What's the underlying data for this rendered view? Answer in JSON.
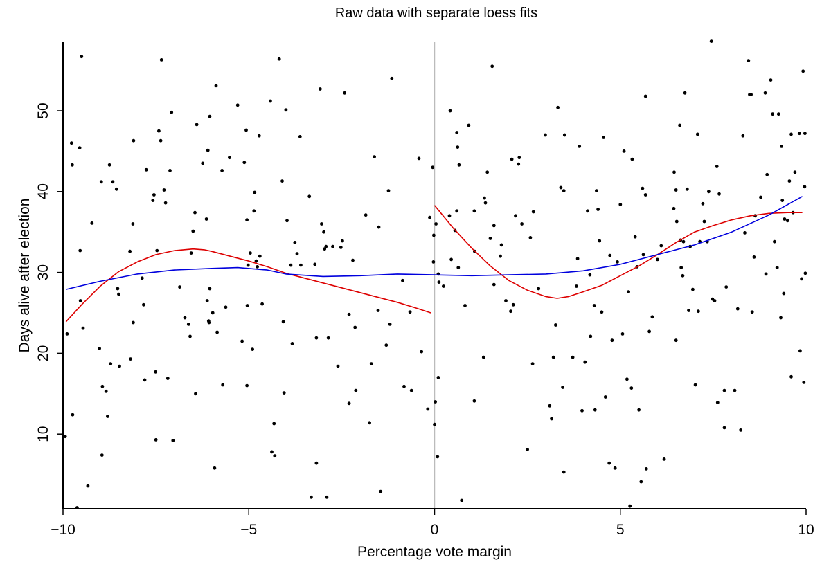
{
  "chart_data": {
    "type": "scatter",
    "title": "Raw data with separate loess fits",
    "xlabel": "Percentage vote margin",
    "ylabel": "Days alive after election",
    "xlim": [
      -10,
      10
    ],
    "ylim": [
      0.8,
      58.6
    ],
    "xticks": [
      -10,
      -5,
      0,
      5,
      10
    ],
    "xtick_labels": [
      "−10",
      "−5",
      "0",
      "5",
      "10"
    ],
    "yticks": [
      10,
      20,
      30,
      40,
      50
    ],
    "ytick_labels": [
      "10",
      "20",
      "30",
      "40",
      "50"
    ],
    "grid": false,
    "legend": null,
    "cutoff_line": {
      "x": 0,
      "color": "#bbbbbb"
    },
    "colors": {
      "points": "#000000",
      "loess_separate": "#dd0000",
      "loess_pooled": "#0000dd",
      "axis": "#000000"
    },
    "points": [
      [
        -9.94,
        9.7
      ],
      [
        -9.89,
        22.4
      ],
      [
        -9.77,
        46.0
      ],
      [
        -9.75,
        43.3
      ],
      [
        -9.74,
        12.4
      ],
      [
        -9.62,
        0.9
      ],
      [
        -9.55,
        45.4
      ],
      [
        -9.54,
        32.7
      ],
      [
        -9.53,
        26.5
      ],
      [
        -9.5,
        56.7
      ],
      [
        -9.46,
        23.1
      ],
      [
        -9.33,
        3.6
      ],
      [
        -9.22,
        36.1
      ],
      [
        -9.02,
        20.6
      ],
      [
        -8.97,
        41.2
      ],
      [
        -8.95,
        7.4
      ],
      [
        -8.94,
        15.9
      ],
      [
        -8.84,
        15.3
      ],
      [
        -8.8,
        12.2
      ],
      [
        -8.75,
        43.3
      ],
      [
        -8.72,
        18.7
      ],
      [
        -8.66,
        41.2
      ],
      [
        -8.56,
        40.3
      ],
      [
        -8.53,
        28.0
      ],
      [
        -8.5,
        27.3
      ],
      [
        -8.48,
        18.4
      ],
      [
        -8.2,
        32.6
      ],
      [
        -8.18,
        19.3
      ],
      [
        -8.12,
        36.0
      ],
      [
        -8.11,
        23.8
      ],
      [
        -8.1,
        46.3
      ],
      [
        -7.87,
        29.3
      ],
      [
        -7.83,
        26.0
      ],
      [
        -7.8,
        16.7
      ],
      [
        -7.76,
        42.7
      ],
      [
        -7.58,
        38.9
      ],
      [
        -7.55,
        39.6
      ],
      [
        -7.51,
        17.7
      ],
      [
        -7.5,
        9.3
      ],
      [
        -7.47,
        32.7
      ],
      [
        -7.42,
        47.5
      ],
      [
        -7.37,
        46.3
      ],
      [
        -7.35,
        56.3
      ],
      [
        -7.28,
        40.2
      ],
      [
        -7.24,
        38.6
      ],
      [
        -7.18,
        16.9
      ],
      [
        -7.12,
        42.6
      ],
      [
        -7.08,
        49.8
      ],
      [
        -7.04,
        9.2
      ],
      [
        -6.86,
        28.2
      ],
      [
        -6.72,
        24.4
      ],
      [
        -6.62,
        23.6
      ],
      [
        -6.58,
        22.1
      ],
      [
        -6.55,
        32.4
      ],
      [
        -6.5,
        35.1
      ],
      [
        -6.45,
        37.4
      ],
      [
        -6.43,
        15.0
      ],
      [
        -6.4,
        48.3
      ],
      [
        -6.24,
        43.5
      ],
      [
        -6.14,
        36.6
      ],
      [
        -6.12,
        26.5
      ],
      [
        -6.1,
        45.1
      ],
      [
        -6.08,
        24.0
      ],
      [
        -6.07,
        23.8
      ],
      [
        -6.05,
        49.3
      ],
      [
        -6.05,
        28.0
      ],
      [
        -5.97,
        25.0
      ],
      [
        -5.92,
        5.8
      ],
      [
        -5.88,
        53.1
      ],
      [
        -5.85,
        22.6
      ],
      [
        -5.72,
        42.6
      ],
      [
        -5.7,
        16.1
      ],
      [
        -5.62,
        25.7
      ],
      [
        -5.52,
        44.2
      ],
      [
        -5.3,
        50.7
      ],
      [
        -5.18,
        21.5
      ],
      [
        -5.12,
        43.6
      ],
      [
        -5.07,
        47.6
      ],
      [
        -5.05,
        36.5
      ],
      [
        -5.05,
        16.0
      ],
      [
        -5.04,
        25.9
      ],
      [
        -5.02,
        30.9
      ],
      [
        -4.96,
        32.4
      ],
      [
        -4.9,
        20.5
      ],
      [
        -4.86,
        37.6
      ],
      [
        -4.84,
        39.9
      ],
      [
        -4.8,
        31.4
      ],
      [
        -4.77,
        30.7
      ],
      [
        -4.72,
        46.9
      ],
      [
        -4.7,
        32.0
      ],
      [
        -4.64,
        26.1
      ],
      [
        -4.42,
        51.2
      ],
      [
        -4.38,
        7.8
      ],
      [
        -4.32,
        11.3
      ],
      [
        -4.3,
        7.3
      ],
      [
        -4.18,
        56.4
      ],
      [
        -4.1,
        41.3
      ],
      [
        -4.07,
        23.9
      ],
      [
        -4.05,
        15.1
      ],
      [
        -4.0,
        50.1
      ],
      [
        -3.97,
        36.4
      ],
      [
        -3.87,
        30.9
      ],
      [
        -3.83,
        21.2
      ],
      [
        -3.76,
        33.7
      ],
      [
        -3.7,
        32.3
      ],
      [
        -3.62,
        46.8
      ],
      [
        -3.6,
        30.9
      ],
      [
        -3.37,
        39.4
      ],
      [
        -3.32,
        2.2
      ],
      [
        -3.22,
        31.0
      ],
      [
        -3.18,
        21.9
      ],
      [
        -3.18,
        6.4
      ],
      [
        -3.08,
        52.7
      ],
      [
        -3.04,
        36.0
      ],
      [
        -2.98,
        35.0
      ],
      [
        -2.96,
        32.9
      ],
      [
        -2.92,
        33.2
      ],
      [
        -2.9,
        2.2
      ],
      [
        -2.86,
        21.9
      ],
      [
        -2.74,
        33.2
      ],
      [
        -2.6,
        18.4
      ],
      [
        -2.52,
        33.1
      ],
      [
        -2.48,
        33.9
      ],
      [
        -2.42,
        52.2
      ],
      [
        -2.3,
        24.8
      ],
      [
        -2.3,
        13.8
      ],
      [
        -2.2,
        31.5
      ],
      [
        -2.14,
        23.2
      ],
      [
        -2.12,
        15.4
      ],
      [
        -1.85,
        37.1
      ],
      [
        -1.75,
        11.4
      ],
      [
        -1.7,
        18.7
      ],
      [
        -1.62,
        44.3
      ],
      [
        -1.52,
        25.3
      ],
      [
        -1.5,
        35.6
      ],
      [
        -1.45,
        2.9
      ],
      [
        -1.3,
        21.0
      ],
      [
        -1.24,
        40.1
      ],
      [
        -1.2,
        23.6
      ],
      [
        -1.15,
        54.0
      ],
      [
        -0.86,
        29.0
      ],
      [
        -0.82,
        15.9
      ],
      [
        -0.66,
        25.1
      ],
      [
        -0.62,
        15.4
      ],
      [
        -0.42,
        44.1
      ],
      [
        -0.35,
        20.2
      ],
      [
        -0.18,
        13.1
      ],
      [
        -0.05,
        43.0
      ],
      [
        0.12,
        28.8
      ],
      [
        -0.13,
        36.8
      ],
      [
        -0.03,
        31.3
      ],
      [
        -0.02,
        34.6
      ],
      [
        0.0,
        11.2
      ],
      [
        0.02,
        14.0
      ],
      [
        0.04,
        36.0
      ],
      [
        0.08,
        7.2
      ],
      [
        0.1,
        17.0
      ],
      [
        0.1,
        29.8
      ],
      [
        0.24,
        28.3
      ],
      [
        0.4,
        37.0
      ],
      [
        0.42,
        50.0
      ],
      [
        0.45,
        31.6
      ],
      [
        0.55,
        35.2
      ],
      [
        0.6,
        37.6
      ],
      [
        0.6,
        47.3
      ],
      [
        0.62,
        45.5
      ],
      [
        0.64,
        30.6
      ],
      [
        0.66,
        43.3
      ],
      [
        0.73,
        1.8
      ],
      [
        0.82,
        25.9
      ],
      [
        0.92,
        48.2
      ],
      [
        1.07,
        14.1
      ],
      [
        1.07,
        37.6
      ],
      [
        1.08,
        32.6
      ],
      [
        1.32,
        19.5
      ],
      [
        1.34,
        39.2
      ],
      [
        1.37,
        38.6
      ],
      [
        1.42,
        42.4
      ],
      [
        1.5,
        34.2
      ],
      [
        1.55,
        55.5
      ],
      [
        1.6,
        35.8
      ],
      [
        1.6,
        28.5
      ],
      [
        1.77,
        32.0
      ],
      [
        1.8,
        33.4
      ],
      [
        1.92,
        26.5
      ],
      [
        2.05,
        25.2
      ],
      [
        2.08,
        44.0
      ],
      [
        2.12,
        26.0
      ],
      [
        2.18,
        37.0
      ],
      [
        2.26,
        43.4
      ],
      [
        2.28,
        44.2
      ],
      [
        2.35,
        36.0
      ],
      [
        2.5,
        8.1
      ],
      [
        2.58,
        34.3
      ],
      [
        2.64,
        18.7
      ],
      [
        2.66,
        37.5
      ],
      [
        2.8,
        28.0
      ],
      [
        2.98,
        47.0
      ],
      [
        3.1,
        13.5
      ],
      [
        3.15,
        11.9
      ],
      [
        3.2,
        19.5
      ],
      [
        3.26,
        23.5
      ],
      [
        3.32,
        50.4
      ],
      [
        3.4,
        40.5
      ],
      [
        3.45,
        15.8
      ],
      [
        3.48,
        40.1
      ],
      [
        3.48,
        5.3
      ],
      [
        3.72,
        19.5
      ],
      [
        3.82,
        28.3
      ],
      [
        3.85,
        31.7
      ],
      [
        3.9,
        45.6
      ],
      [
        3.97,
        12.9
      ],
      [
        4.05,
        18.9
      ],
      [
        4.12,
        37.6
      ],
      [
        4.18,
        29.7
      ],
      [
        4.2,
        22.1
      ],
      [
        4.3,
        25.9
      ],
      [
        4.32,
        13.0
      ],
      [
        4.36,
        40.1
      ],
      [
        4.4,
        37.8
      ],
      [
        4.44,
        33.9
      ],
      [
        4.5,
        25.1
      ],
      [
        4.55,
        46.7
      ],
      [
        4.6,
        14.6
      ],
      [
        4.7,
        6.4
      ],
      [
        4.72,
        32.1
      ],
      [
        4.78,
        21.6
      ],
      [
        4.86,
        5.8
      ],
      [
        4.92,
        31.3
      ],
      [
        5.0,
        38.4
      ],
      [
        5.06,
        22.4
      ],
      [
        5.1,
        45.0
      ],
      [
        5.18,
        16.8
      ],
      [
        5.22,
        27.6
      ],
      [
        5.26,
        1.1
      ],
      [
        5.3,
        15.7
      ],
      [
        5.32,
        44.0
      ],
      [
        5.4,
        34.4
      ],
      [
        5.45,
        30.7
      ],
      [
        5.5,
        13.0
      ],
      [
        5.56,
        4.1
      ],
      [
        5.6,
        40.4
      ],
      [
        5.62,
        32.2
      ],
      [
        5.68,
        51.8
      ],
      [
        5.68,
        39.6
      ],
      [
        5.7,
        5.7
      ],
      [
        5.78,
        22.7
      ],
      [
        5.86,
        24.5
      ],
      [
        6.0,
        31.6
      ],
      [
        6.1,
        33.3
      ],
      [
        6.18,
        6.9
      ],
      [
        6.44,
        37.9
      ],
      [
        6.45,
        42.4
      ],
      [
        6.5,
        40.2
      ],
      [
        6.5,
        21.6
      ],
      [
        6.52,
        36.3
      ],
      [
        6.6,
        48.2
      ],
      [
        6.62,
        34.0
      ],
      [
        6.64,
        30.6
      ],
      [
        6.68,
        29.6
      ],
      [
        6.7,
        33.8
      ],
      [
        6.74,
        52.2
      ],
      [
        6.8,
        40.3
      ],
      [
        6.84,
        25.3
      ],
      [
        6.88,
        33.2
      ],
      [
        6.95,
        27.9
      ],
      [
        7.02,
        16.1
      ],
      [
        7.08,
        47.1
      ],
      [
        7.1,
        25.2
      ],
      [
        7.14,
        33.8
      ],
      [
        7.22,
        38.5
      ],
      [
        7.26,
        36.3
      ],
      [
        7.34,
        33.8
      ],
      [
        7.38,
        40.0
      ],
      [
        7.48,
        26.7
      ],
      [
        7.54,
        26.5
      ],
      [
        7.6,
        43.1
      ],
      [
        7.62,
        13.9
      ],
      [
        7.66,
        39.7
      ],
      [
        7.8,
        15.4
      ],
      [
        7.8,
        10.8
      ],
      [
        7.85,
        28.2
      ],
      [
        8.08,
        15.4
      ],
      [
        8.16,
        25.5
      ],
      [
        8.24,
        10.5
      ],
      [
        8.3,
        46.9
      ],
      [
        8.35,
        34.9
      ],
      [
        8.45,
        56.2
      ],
      [
        8.48,
        52.0
      ],
      [
        8.52,
        52.0
      ],
      [
        8.55,
        25.1
      ],
      [
        8.6,
        31.9
      ],
      [
        8.63,
        37.0
      ],
      [
        8.78,
        39.3
      ],
      [
        8.9,
        52.2
      ],
      [
        8.92,
        29.8
      ],
      [
        8.95,
        42.1
      ],
      [
        9.05,
        53.8
      ],
      [
        9.1,
        49.6
      ],
      [
        9.15,
        33.8
      ],
      [
        9.22,
        30.6
      ],
      [
        9.26,
        49.6
      ],
      [
        9.32,
        24.4
      ],
      [
        9.34,
        45.6
      ],
      [
        9.36,
        38.9
      ],
      [
        9.4,
        27.4
      ],
      [
        9.42,
        36.6
      ],
      [
        9.5,
        36.4
      ],
      [
        9.55,
        41.3
      ],
      [
        9.6,
        47.1
      ],
      [
        9.6,
        17.1
      ],
      [
        9.65,
        37.4
      ],
      [
        9.7,
        42.4
      ],
      [
        9.82,
        47.2
      ],
      [
        9.84,
        20.3
      ],
      [
        9.88,
        29.2
      ],
      [
        9.92,
        54.9
      ],
      [
        9.94,
        16.4
      ],
      [
        9.96,
        40.6
      ],
      [
        9.98,
        29.9
      ],
      [
        9.97,
        47.2
      ],
      [
        7.45,
        58.6
      ],
      [
        3.5,
        47.0
      ]
    ],
    "series": [
      {
        "name": "loess fit, left of cutoff",
        "color": "#dd0000",
        "x": [
          -9.92,
          -9.5,
          -9.0,
          -8.5,
          -8.0,
          -7.5,
          -7.0,
          -6.5,
          -6.2,
          -6.0,
          -5.5,
          -5.0,
          -4.5,
          -4.0,
          -3.5,
          -3.0,
          -2.5,
          -2.0,
          -1.5,
          -1.0,
          -0.5,
          -0.1
        ],
        "y": [
          23.9,
          26.0,
          28.3,
          30.1,
          31.3,
          32.2,
          32.7,
          32.9,
          32.8,
          32.6,
          32.0,
          31.4,
          30.7,
          29.9,
          29.3,
          28.7,
          28.1,
          27.5,
          26.9,
          26.3,
          25.6,
          25.0
        ]
      },
      {
        "name": "loess fit, right of cutoff",
        "color": "#dd0000",
        "x": [
          0.0,
          0.5,
          1.0,
          1.5,
          2.0,
          2.5,
          3.0,
          3.3,
          3.6,
          4.0,
          4.5,
          5.0,
          5.5,
          6.0,
          6.5,
          7.0,
          7.5,
          8.0,
          8.5,
          9.0,
          9.5,
          9.9
        ],
        "y": [
          38.3,
          35.5,
          33.0,
          30.8,
          29.0,
          27.8,
          27.0,
          26.8,
          27.0,
          27.6,
          28.4,
          29.6,
          30.8,
          32.2,
          33.7,
          35.0,
          35.8,
          36.5,
          37.0,
          37.3,
          37.4,
          37.4
        ]
      },
      {
        "name": "pooled loess fit",
        "color": "#0000dd",
        "x": [
          -9.92,
          -9.0,
          -8.0,
          -7.0,
          -6.0,
          -5.3,
          -4.5,
          -4.0,
          -3.0,
          -2.0,
          -1.0,
          0.0,
          1.0,
          2.0,
          3.0,
          4.0,
          5.0,
          6.0,
          7.0,
          8.0,
          9.0,
          9.9
        ],
        "y": [
          27.9,
          28.9,
          29.8,
          30.3,
          30.5,
          30.6,
          30.3,
          29.8,
          29.5,
          29.6,
          29.8,
          29.7,
          29.6,
          29.7,
          29.8,
          30.2,
          31.0,
          32.2,
          33.4,
          35.0,
          37.1,
          39.4
        ]
      }
    ]
  }
}
